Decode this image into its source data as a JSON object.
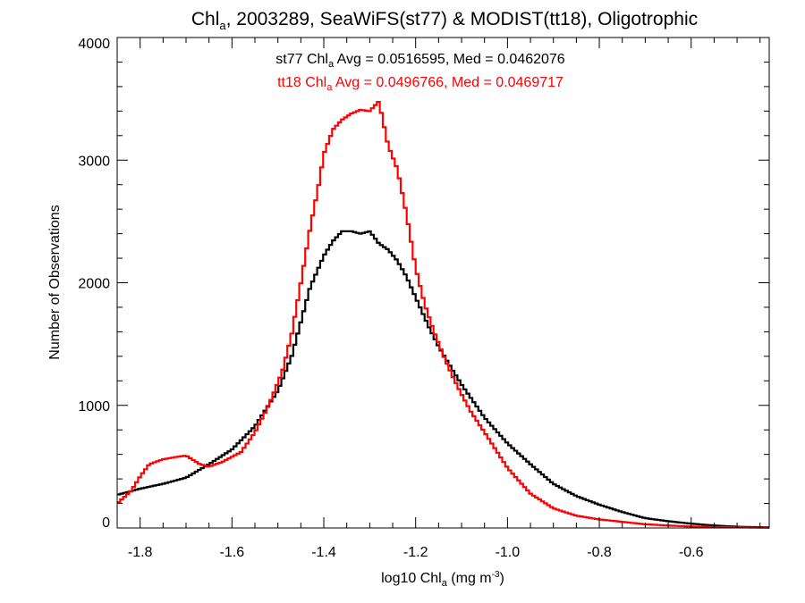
{
  "chart_data": {
    "type": "line",
    "title": {
      "pre": "Chl",
      "sub": "a",
      "post": ", 2003289, SeaWiFS(st77) & MODIST(tt18), Oligotrophic"
    },
    "xlabel": {
      "pre": "log10 Chl",
      "sub": "a",
      "mid": " (mg m",
      "sup": "-3",
      "post": ")"
    },
    "ylabel": "Number of Observations",
    "xlim": [
      -1.85,
      -0.43
    ],
    "ylim": [
      0,
      4000
    ],
    "x_major_ticks": [
      -1.8,
      -1.6,
      -1.4,
      -1.2,
      -1.0,
      -0.8,
      -0.6
    ],
    "x_tick_labels": [
      "-1.8",
      "-1.6",
      "-1.4",
      "-1.2",
      "-1.0",
      "-0.8",
      "-0.6"
    ],
    "y_major_ticks": [
      0,
      1000,
      2000,
      3000,
      4000
    ],
    "y_tick_labels": [
      "0",
      "1000",
      "2000",
      "3000",
      "4000"
    ],
    "grid": false,
    "annotations": [
      {
        "color": "#000000",
        "pre": "st77 Chl",
        "sub": "a",
        "post": " Avg = 0.0516595, Med = 0.0462076"
      },
      {
        "color": "#ff0000",
        "pre": "tt18 Chl",
        "sub": "a",
        "post": " Avg = 0.0496766, Med = 0.0469717"
      }
    ],
    "series": [
      {
        "color": "#000000",
        "step": true,
        "points": [
          [
            -1.85,
            270
          ],
          [
            -1.8,
            320
          ],
          [
            -1.75,
            360
          ],
          [
            -1.7,
            410
          ],
          [
            -1.65,
            520
          ],
          [
            -1.6,
            640
          ],
          [
            -1.55,
            830
          ],
          [
            -1.5,
            1120
          ],
          [
            -1.47,
            1400
          ],
          [
            -1.45,
            1680
          ],
          [
            -1.43,
            1960
          ],
          [
            -1.4,
            2220
          ],
          [
            -1.38,
            2340
          ],
          [
            -1.36,
            2420
          ],
          [
            -1.34,
            2420
          ],
          [
            -1.32,
            2400
          ],
          [
            -1.3,
            2420
          ],
          [
            -1.28,
            2320
          ],
          [
            -1.26,
            2270
          ],
          [
            -1.24,
            2180
          ],
          [
            -1.22,
            2050
          ],
          [
            -1.2,
            1880
          ],
          [
            -1.17,
            1630
          ],
          [
            -1.15,
            1480
          ],
          [
            -1.12,
            1290
          ],
          [
            -1.1,
            1170
          ],
          [
            -1.05,
            900
          ],
          [
            -1.0,
            690
          ],
          [
            -0.95,
            520
          ],
          [
            -0.9,
            360
          ],
          [
            -0.85,
            260
          ],
          [
            -0.8,
            190
          ],
          [
            -0.75,
            130
          ],
          [
            -0.7,
            80
          ],
          [
            -0.65,
            55
          ],
          [
            -0.6,
            35
          ],
          [
            -0.55,
            20
          ],
          [
            -0.5,
            10
          ],
          [
            -0.43,
            5
          ]
        ]
      },
      {
        "color": "#ff0000",
        "step": true,
        "points": [
          [
            -1.85,
            200
          ],
          [
            -1.82,
            300
          ],
          [
            -1.8,
            420
          ],
          [
            -1.78,
            520
          ],
          [
            -1.75,
            560
          ],
          [
            -1.72,
            580
          ],
          [
            -1.7,
            590
          ],
          [
            -1.67,
            520
          ],
          [
            -1.65,
            500
          ],
          [
            -1.62,
            540
          ],
          [
            -1.58,
            620
          ],
          [
            -1.55,
            780
          ],
          [
            -1.52,
            1000
          ],
          [
            -1.49,
            1280
          ],
          [
            -1.47,
            1580
          ],
          [
            -1.45,
            2000
          ],
          [
            -1.43,
            2440
          ],
          [
            -1.41,
            2820
          ],
          [
            -1.4,
            3050
          ],
          [
            -1.38,
            3250
          ],
          [
            -1.36,
            3330
          ],
          [
            -1.34,
            3380
          ],
          [
            -1.32,
            3410
          ],
          [
            -1.3,
            3400
          ],
          [
            -1.28,
            3480
          ],
          [
            -1.27,
            3300
          ],
          [
            -1.26,
            3120
          ],
          [
            -1.24,
            2930
          ],
          [
            -1.22,
            2560
          ],
          [
            -1.2,
            2120
          ],
          [
            -1.18,
            1820
          ],
          [
            -1.16,
            1600
          ],
          [
            -1.14,
            1410
          ],
          [
            -1.12,
            1240
          ],
          [
            -1.1,
            1090
          ],
          [
            -1.08,
            950
          ],
          [
            -1.05,
            780
          ],
          [
            -1.0,
            490
          ],
          [
            -0.95,
            280
          ],
          [
            -0.9,
            160
          ],
          [
            -0.85,
            100
          ],
          [
            -0.8,
            70
          ],
          [
            -0.75,
            50
          ],
          [
            -0.7,
            30
          ],
          [
            -0.65,
            20
          ],
          [
            -0.6,
            12
          ],
          [
            -0.55,
            8
          ],
          [
            -0.5,
            5
          ],
          [
            -0.43,
            2
          ]
        ]
      }
    ]
  }
}
